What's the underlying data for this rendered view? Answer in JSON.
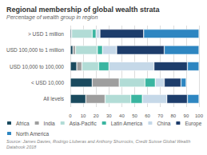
{
  "chart_data": {
    "type": "bar",
    "orientation": "horizontal",
    "stacked": true,
    "title": "Regional membership of global wealth strata",
    "subtitle": "Percentage of wealth group in region",
    "annotations": [
      "Source: James Davies, Rodrigo Lluberas and Anthony Shurrocks, Credit Suisse Global Wealth Databook 2018"
    ],
    "categories": [
      "> USD 1 million",
      "USD 100,000 to 1 million",
      "USD 10,000 to 100,000",
      "< USD 10,000",
      "All levels"
    ],
    "series": [
      {
        "name": "Africa",
        "color": "#1a4a5e",
        "values": [
          1,
          2,
          5,
          17,
          12
        ]
      },
      {
        "name": "India",
        "color": "#9e9e9e",
        "values": [
          0,
          2,
          4,
          21,
          15
        ]
      },
      {
        "name": "Asia-Pacific",
        "color": "#b2dcd6",
        "values": [
          16,
          17,
          13,
          20,
          20
        ]
      },
      {
        "name": "Latin America",
        "color": "#3ab5a0",
        "values": [
          3,
          4,
          8,
          8,
          9
        ]
      },
      {
        "name": "China",
        "color": "#c5d8e8",
        "values": [
          3,
          11,
          35,
          7,
          19
        ]
      },
      {
        "name": "Europe",
        "color": "#1d3d6b",
        "values": [
          34,
          37,
          26,
          13,
          16
        ]
      },
      {
        "name": "North America",
        "color": "#2e86c1",
        "values": [
          43,
          27,
          9,
          4,
          9
        ]
      }
    ],
    "xlim": [
      0,
      100
    ],
    "xticks": [
      0,
      10,
      20,
      30,
      40,
      50,
      60,
      70,
      80,
      90,
      100
    ],
    "grid": true,
    "legend": "bottom"
  }
}
